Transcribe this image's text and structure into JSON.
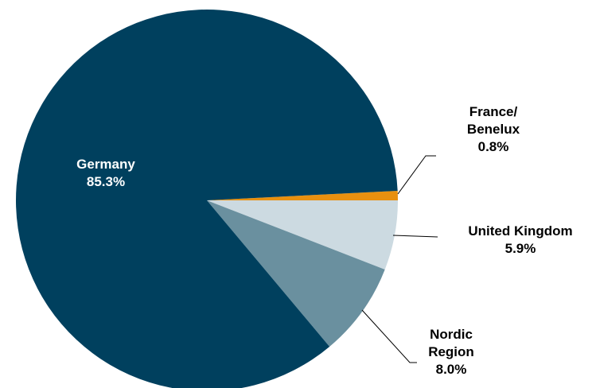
{
  "chart_data": {
    "type": "pie",
    "categories": [
      "France/ Benelux",
      "United Kingdom",
      "Nordic Region",
      "Germany"
    ],
    "values": [
      0.8,
      5.9,
      8.0,
      85.3
    ],
    "value_labels": [
      "0.8%",
      "5.9%",
      "8.0%",
      "85.3%"
    ],
    "colors": [
      "#e8900f",
      "#ccdae1",
      "#6a909f",
      "#00405e"
    ]
  }
}
